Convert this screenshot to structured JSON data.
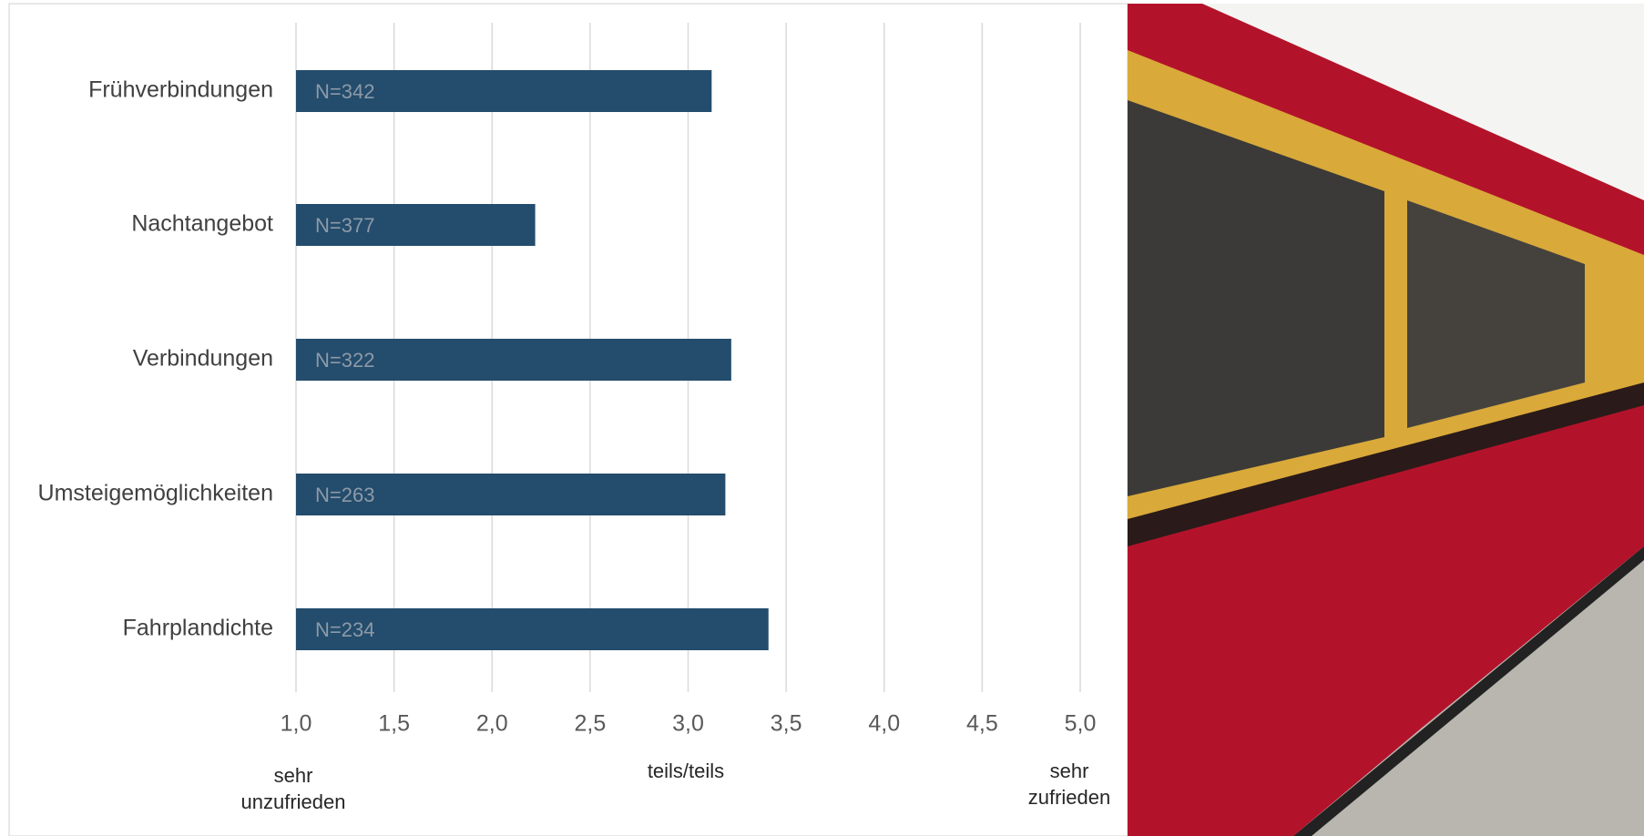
{
  "chart_data": {
    "type": "bar",
    "orientation": "horizontal",
    "categories": [
      "Frühverbindungen",
      "Nachtangebot",
      "Verbindungen",
      "Umsteigemöglichkeiten",
      "Fahrplandichte"
    ],
    "values": [
      3.12,
      2.22,
      3.22,
      3.19,
      3.41
    ],
    "annotations": [
      "N=342",
      "N=377",
      "N=322",
      "N=263",
      "N=234"
    ],
    "color": "#244c6c",
    "xlim": [
      1,
      5
    ],
    "xticks": [
      {
        "value": 1,
        "label": "1,0"
      },
      {
        "value": 1.5,
        "label": "1,5"
      },
      {
        "value": 2,
        "label": "2,0"
      },
      {
        "value": 2.5,
        "label": "2,5"
      },
      {
        "value": 3,
        "label": "3,0"
      },
      {
        "value": 3.5,
        "label": "3,5"
      },
      {
        "value": 4,
        "label": "4,0"
      },
      {
        "value": 4.5,
        "label": "4,5"
      },
      {
        "value": 5,
        "label": "5,0"
      }
    ],
    "grid": true,
    "scale_labels": [
      [
        "sehr",
        "unzufrieden"
      ],
      [
        "teils/teils"
      ],
      [
        "sehr",
        "zufrieden"
      ]
    ]
  }
}
